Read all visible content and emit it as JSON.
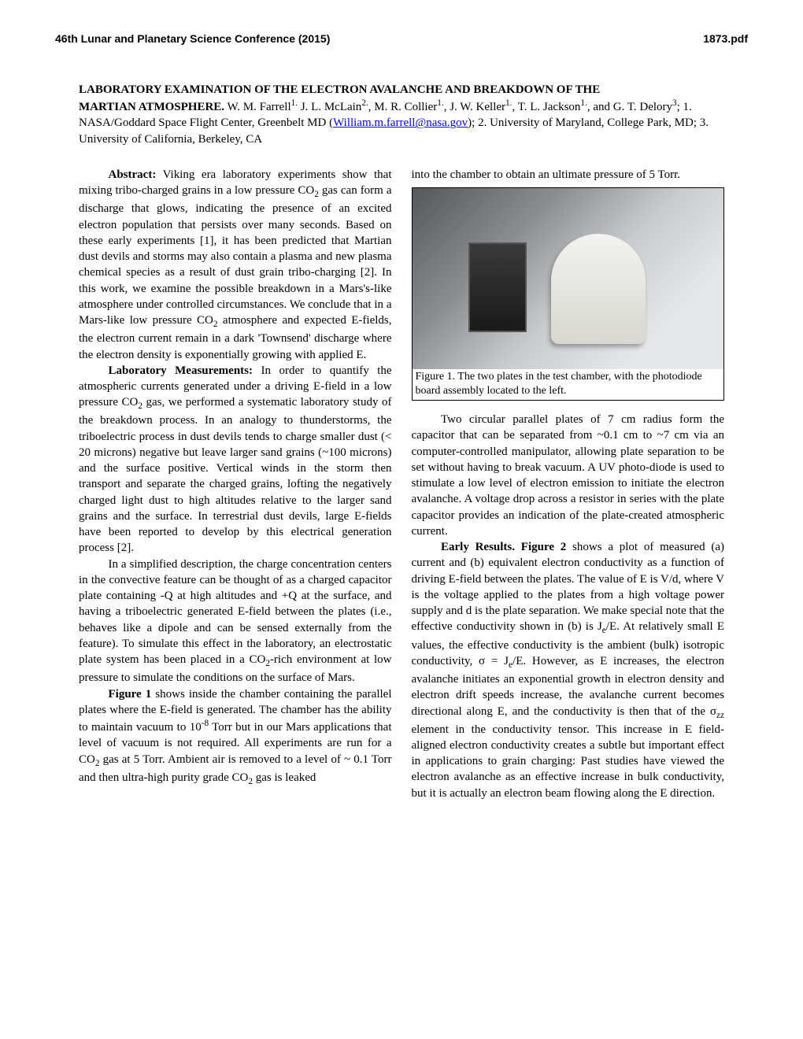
{
  "header": {
    "conference": "46th Lunar and Planetary Science Conference (2015)",
    "pdf": "1873.pdf"
  },
  "title": {
    "line1": "LABORATORY EXAMINATION OF THE ELECTRON AVALANCHE AND BREAKDOWN OF THE",
    "line2_bold": "MARTIAN ATMOSPHERE.",
    "authors_part1": "  W. M. Farrell",
    "sup1": "1.",
    "authors_part2": "  J. L. McLain",
    "sup2": "2.",
    "authors_part3": ", M. R. Collier",
    "sup3": "1.",
    "authors_part4": ", J. W. Keller",
    "sup4": "1.",
    "authors_part5": ", T. L. Jackson",
    "sup5": "1.",
    "authors_part6": ", and G. T. Delory",
    "sup6": "3",
    "affil_part1": "; 1. NASA/Goddard Space Flight Center, Greenbelt MD (",
    "email": "William.m.farrell@nasa.gov",
    "affil_part2": "); 2. University of Maryland, College Park, MD; 3.  University of California, Berkeley, CA"
  },
  "left": {
    "abstract_head": "Abstract:",
    "abstract_body": " Viking era laboratory experiments show that mixing tribo-charged grains in a low pressure CO",
    "abstract_sub1": "2",
    "abstract_body2": " gas can form a discharge that glows, indicating the presence of an excited electron population that persists over many seconds. Based on these early experiments [1], it has been predicted that Martian dust devils and storms may also contain a plasma and new plasma chemical species as a result of dust grain tribo-charging [2]. In this work, we examine the possible breakdown in a Mars's-like atmosphere under controlled circumstances. We conclude that in a Mars-like low pressure CO",
    "abstract_sub2": "2",
    "abstract_body3": " atmosphere and expected E-fields, the electron current remain in a dark 'Townsend' discharge where the electron density is exponentially growing with applied E.",
    "lab_head": "Laboratory Measurements:",
    "lab_body1": "   In order to quantify the atmospheric currents generated under a driving E-field in a low pressure CO",
    "lab_sub1": "2",
    "lab_body2": " gas, we performed a systematic laboratory study of the breakdown process. In an analogy to thunderstorms, the triboelectric process in dust devils tends to charge smaller dust (< 20 microns) negative but leave larger sand grains (~100 microns) and the surface positive. Vertical winds in the storm then transport and separate the charged grains, lofting the negatively charged light dust to high altitudes relative to the larger sand grains and the surface. In terrestrial dust devils, large E-fields have been reported to develop by this electrical generation process [2].",
    "p3": "In a simplified description, the charge concentration centers in the convective feature can be thought of as a charged capacitor plate containing -Q at high altitudes and +Q at the surface, and having a triboelectric generated E-field between the plates (i.e., behaves like a dipole and can be sensed externally from the feature). To simulate this effect in the laboratory, an electrostatic plate system has been placed in a CO",
    "p3_sub": "2",
    "p3_b": "-rich environment at low pressure to simulate the conditions on the surface of Mars.",
    "p4_head": "Figure 1",
    "p4_body": " shows inside the chamber containing the parallel plates where the E-field is generated. The chamber has the ability to maintain vacuum to 10",
    "p4_sup": "-8",
    "p4_body2": " Torr but in our Mars applications that level of vacuum is not required.  All experiments are run for a CO",
    "p4_sub": "2",
    "p4_body3": " gas at 5 Torr. Ambient air is removed to a level of ~ 0.1 Torr and then ultra-high purity grade CO",
    "p4_sub2": "2",
    "p4_body4": " gas is leaked"
  },
  "right": {
    "top_line": "into the chamber to obtain an ultimate pressure of 5 Torr.",
    "fig_caption": "Figure 1. The two plates in the test chamber, with the photodiode board assembly located to the left.",
    "p2": "Two circular parallel plates of 7 cm radius form the capacitor that can be separated from ~0.1 cm to ~7 cm via an computer-controlled manipulator,  allowing plate separation to be set without having to break vacuum. A UV photo-diode is used to stimulate a low level of electron emission to initiate the electron avalanche.  A voltage drop across a resistor in series with the plate capacitor provides an indication of the plate-created atmospheric current.",
    "p3_head": "Early Results. Figure 2",
    "p3_body": " shows a plot of measured (a) current and (b) equivalent electron conductivity as a function of driving E-field between the plates. The value of E is V/d, where V is the voltage applied to the plates from a high voltage power supply and d is the plate separation. We make special note that the effective conductivity shown in (b) is J",
    "p3_sub1": "e",
    "p3_body2": "/E. At relatively small E values, the effective conductivity is the ambient (bulk) isotropic conductivity, σ = J",
    "p3_sub2": "e",
    "p3_body3": "/E. However, as E increases, the electron avalanche initiates an exponential growth in electron density and electron drift speeds increase, the avalanche current becomes directional along E, and the conductivity is then that of the σ",
    "p3_sub3": "zz",
    "p3_body4": " element in the conductivity tensor. This increase in E field-aligned electron conductivity creates a subtle but important effect in applications to grain charging: Past studies have viewed the electron avalanche as an effective increase in bulk conductivity, but it is actually an electron beam flowing along the E direction."
  }
}
